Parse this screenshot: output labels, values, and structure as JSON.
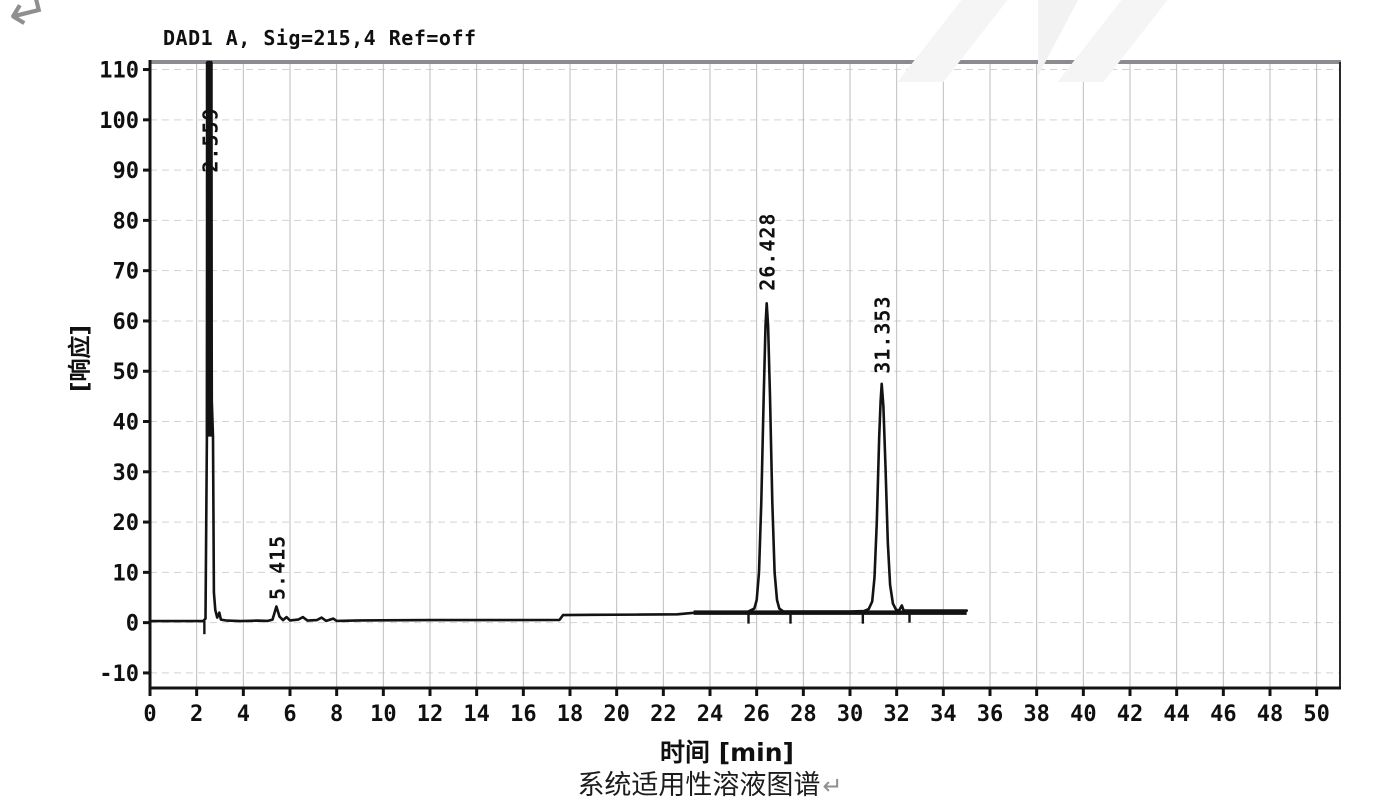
{
  "page": {
    "return_mark_top": "↵",
    "caption": "系统适用性溶液图谱",
    "caption_return_mark": "↵"
  },
  "colors": {
    "trace": "#131313",
    "axis": "#131313",
    "frame_top": "#8c8c90",
    "frame_right": "#2a2a2a",
    "grid_v": "#bdbdbf",
    "grid_h": "#d3d3d5",
    "text": "#101010",
    "watermark": "#f4f4f5",
    "return_mark": "#8f8f8f"
  },
  "chart_data": {
    "type": "line",
    "title": "DAD1 A, Sig=215,4 Ref=off",
    "xlabel": "时间 [min]",
    "ylabel": "[响应]",
    "xlim": [
      0,
      51
    ],
    "ylim": [
      -13,
      111.5
    ],
    "xticks": [
      0,
      2,
      4,
      6,
      8,
      10,
      12,
      14,
      16,
      18,
      20,
      22,
      24,
      26,
      28,
      30,
      32,
      34,
      36,
      38,
      40,
      42,
      44,
      46,
      48,
      50
    ],
    "yticks": [
      -10,
      0,
      10,
      20,
      30,
      40,
      50,
      60,
      70,
      80,
      90,
      100,
      110
    ],
    "grid": true,
    "legend_position": "none",
    "peaks": [
      {
        "label": "2.559",
        "time": 2.559,
        "apex_value": 111.5,
        "clipped": true,
        "label_anchor_value": 89.5
      },
      {
        "label": "5.415",
        "time": 5.415,
        "apex_value": 3.2,
        "clipped": false,
        "label_anchor_value": 4.5
      },
      {
        "label": "26.428",
        "time": 26.428,
        "apex_value": 63.5,
        "clipped": false,
        "label_anchor_value": 66.0
      },
      {
        "label": "31.353",
        "time": 31.353,
        "apex_value": 47.5,
        "clipped": false,
        "label_anchor_value": 49.5
      }
    ],
    "thick_segments": [
      {
        "x1": 2.54,
        "v1": 37.0,
        "x2": 2.54,
        "v2": 111.5,
        "width": 7
      },
      {
        "x1": 23.3,
        "v1": 2.0,
        "x2": 35.0,
        "v2": 2.0,
        "width": 4.5
      }
    ],
    "integration_ticks": [
      {
        "time": 2.33,
        "from": 0.3,
        "drop": 2.6
      },
      {
        "time": 25.65,
        "from": 2.0,
        "drop": 2.2
      },
      {
        "time": 27.45,
        "from": 2.0,
        "drop": 2.2
      },
      {
        "time": 30.55,
        "from": 2.0,
        "drop": 2.2
      },
      {
        "time": 32.55,
        "from": 2.2,
        "drop": 2.2
      }
    ],
    "series": [
      {
        "name": "DAD1 A",
        "points": [
          [
            0,
            0.3
          ],
          [
            1.5,
            0.3
          ],
          [
            2.28,
            0.3
          ],
          [
            2.38,
            0.8
          ],
          [
            2.44,
            37
          ],
          [
            2.47,
            111.5
          ],
          [
            2.62,
            111.5
          ],
          [
            2.65,
            44
          ],
          [
            2.7,
            37
          ],
          [
            2.74,
            6
          ],
          [
            2.8,
            2.5
          ],
          [
            2.88,
            1.0
          ],
          [
            2.97,
            2.0
          ],
          [
            3.04,
            0.6
          ],
          [
            3.3,
            0.4
          ],
          [
            3.9,
            0.3
          ],
          [
            4.6,
            0.4
          ],
          [
            5.05,
            0.35
          ],
          [
            5.25,
            0.6
          ],
          [
            5.415,
            3.2
          ],
          [
            5.55,
            1.2
          ],
          [
            5.7,
            0.5
          ],
          [
            5.85,
            1.1
          ],
          [
            6.0,
            0.45
          ],
          [
            6.35,
            0.6
          ],
          [
            6.55,
            1.1
          ],
          [
            6.75,
            0.4
          ],
          [
            7.15,
            0.5
          ],
          [
            7.35,
            1.0
          ],
          [
            7.55,
            0.35
          ],
          [
            7.85,
            0.8
          ],
          [
            8.0,
            0.35
          ],
          [
            9.0,
            0.45
          ],
          [
            12.0,
            0.5
          ],
          [
            15.0,
            0.5
          ],
          [
            17.55,
            0.55
          ],
          [
            17.7,
            1.5
          ],
          [
            19.0,
            1.55
          ],
          [
            21.0,
            1.6
          ],
          [
            22.6,
            1.65
          ],
          [
            23.3,
            1.95
          ],
          [
            24.5,
            2.05
          ],
          [
            25.6,
            2.1
          ],
          [
            25.9,
            2.8
          ],
          [
            26.0,
            4.5
          ],
          [
            26.1,
            10
          ],
          [
            26.2,
            24
          ],
          [
            26.3,
            45
          ],
          [
            26.38,
            59
          ],
          [
            26.43,
            63.5
          ],
          [
            26.49,
            59
          ],
          [
            26.57,
            45
          ],
          [
            26.67,
            24
          ],
          [
            26.77,
            10
          ],
          [
            26.87,
            4.5
          ],
          [
            26.97,
            2.8
          ],
          [
            27.15,
            2.2
          ],
          [
            28.5,
            2.2
          ],
          [
            30.0,
            2.2
          ],
          [
            30.6,
            2.3
          ],
          [
            30.8,
            2.7
          ],
          [
            30.95,
            4.2
          ],
          [
            31.05,
            9
          ],
          [
            31.15,
            20
          ],
          [
            31.25,
            37
          ],
          [
            31.31,
            44
          ],
          [
            31.36,
            47.5
          ],
          [
            31.43,
            43
          ],
          [
            31.52,
            31
          ],
          [
            31.62,
            16
          ],
          [
            31.72,
            7.5
          ],
          [
            31.84,
            3.8
          ],
          [
            31.97,
            2.6
          ],
          [
            32.1,
            2.4
          ],
          [
            32.22,
            3.4
          ],
          [
            32.3,
            2.4
          ],
          [
            33.0,
            2.4
          ],
          [
            34.0,
            2.4
          ],
          [
            35.0,
            2.4
          ]
        ]
      }
    ]
  }
}
